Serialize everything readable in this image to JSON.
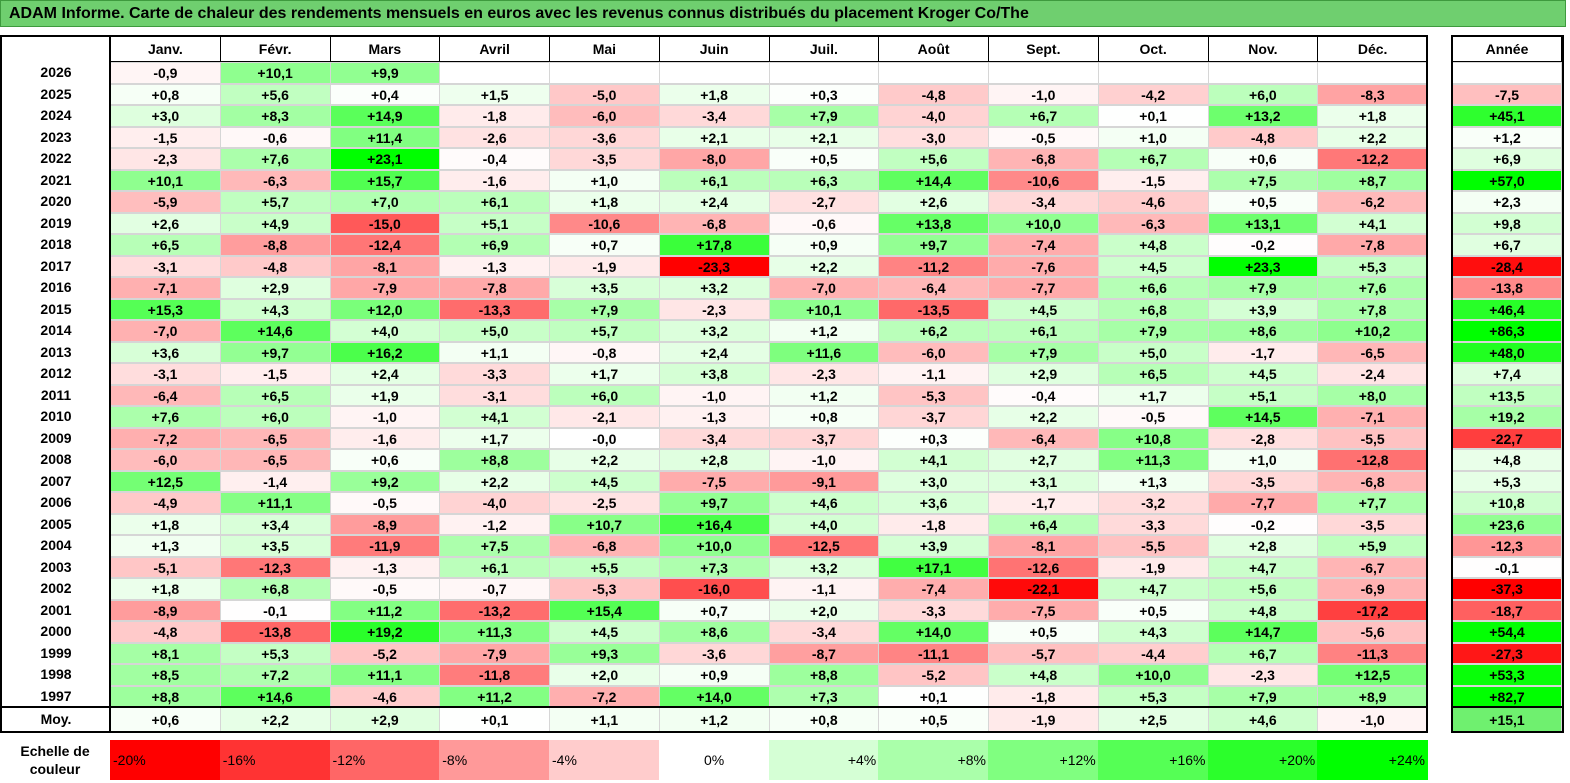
{
  "title": "ADAM Informe. Carte de chaleur des rendements mensuels en euros avec les revenus connus distribués du placement Kroger Co/The",
  "months": [
    "Janv.",
    "Févr.",
    "Mars",
    "Avril",
    "Mai",
    "Juin",
    "Juil.",
    "Août",
    "Sept.",
    "Oct.",
    "Nov.",
    "Déc."
  ],
  "year_header": "Année",
  "avg_label": "Moy.",
  "scale_label": "Echelle de couleur",
  "colors": {
    "neg_max": "#ff0000",
    "zero": "#ffffff",
    "pos_max": "#00ff00"
  },
  "chart_data": {
    "type": "heatmap",
    "title": "ADAM Informe. Carte de chaleur des rendements mensuels en euros avec les revenus connus distribués du placement Kroger Co/The",
    "rows": [
      {
        "year": "2026",
        "values": [
          "-0,9",
          "+10,1",
          "+9,9",
          "",
          "",
          "",
          "",
          "",
          "",
          "",
          "",
          ""
        ],
        "annual": ""
      },
      {
        "year": "2025",
        "values": [
          "+0,8",
          "+5,6",
          "+0,4",
          "+1,5",
          "-5,0",
          "+1,8",
          "+0,3",
          "-4,8",
          "-1,0",
          "-4,2",
          "+6,0",
          "-8,3"
        ],
        "annual": "-7,5"
      },
      {
        "year": "2024",
        "values": [
          "+3,0",
          "+8,3",
          "+14,9",
          "-1,8",
          "-6,0",
          "-3,4",
          "+7,9",
          "-4,0",
          "+6,7",
          "+0,1",
          "+13,2",
          "+1,8"
        ],
        "annual": "+45,1"
      },
      {
        "year": "2023",
        "values": [
          "-1,5",
          "-0,6",
          "+11,4",
          "-2,6",
          "-3,6",
          "+2,1",
          "+2,1",
          "-3,0",
          "-0,5",
          "+1,0",
          "-4,8",
          "+2,2"
        ],
        "annual": "+1,2"
      },
      {
        "year": "2022",
        "values": [
          "-2,3",
          "+7,6",
          "+23,1",
          "-0,4",
          "-3,5",
          "-8,0",
          "+0,5",
          "+5,6",
          "-6,8",
          "+6,7",
          "+0,6",
          "-12,2"
        ],
        "annual": "+6,9"
      },
      {
        "year": "2021",
        "values": [
          "+10,1",
          "-6,3",
          "+15,7",
          "-1,6",
          "+1,0",
          "+6,1",
          "+6,3",
          "+14,4",
          "-10,6",
          "-1,5",
          "+7,5",
          "+8,7"
        ],
        "annual": "+57,0"
      },
      {
        "year": "2020",
        "values": [
          "-5,9",
          "+5,7",
          "+7,0",
          "+6,1",
          "+1,8",
          "+2,4",
          "-2,7",
          "+2,6",
          "-3,4",
          "-4,6",
          "+0,5",
          "-6,2"
        ],
        "annual": "+2,3"
      },
      {
        "year": "2019",
        "values": [
          "+2,6",
          "+4,9",
          "-15,0",
          "+5,1",
          "-10,6",
          "-6,8",
          "-0,6",
          "+13,8",
          "+10,0",
          "-6,3",
          "+13,1",
          "+4,1"
        ],
        "annual": "+9,8"
      },
      {
        "year": "2018",
        "values": [
          "+6,5",
          "-8,8",
          "-12,4",
          "+6,9",
          "+0,7",
          "+17,8",
          "+0,9",
          "+9,7",
          "-7,4",
          "+4,8",
          "-0,2",
          "-7,8"
        ],
        "annual": "+6,7"
      },
      {
        "year": "2017",
        "values": [
          "-3,1",
          "-4,8",
          "-8,1",
          "-1,3",
          "-1,9",
          "-23,3",
          "+2,2",
          "-11,2",
          "-7,6",
          "+4,5",
          "+23,3",
          "+5,3"
        ],
        "annual": "-28,4"
      },
      {
        "year": "2016",
        "values": [
          "-7,1",
          "+2,9",
          "-7,9",
          "-7,8",
          "+3,5",
          "+3,2",
          "-7,0",
          "-6,4",
          "-7,7",
          "+6,6",
          "+7,9",
          "+7,6"
        ],
        "annual": "-13,8"
      },
      {
        "year": "2015",
        "values": [
          "+15,3",
          "+4,3",
          "+12,0",
          "-13,3",
          "+7,9",
          "-2,3",
          "+10,1",
          "-13,5",
          "+4,5",
          "+6,8",
          "+3,9",
          "+7,8"
        ],
        "annual": "+46,4"
      },
      {
        "year": "2014",
        "values": [
          "-7,0",
          "+14,6",
          "+4,0",
          "+5,0",
          "+5,7",
          "+3,2",
          "+1,2",
          "+6,2",
          "+6,1",
          "+7,9",
          "+8,6",
          "+10,2"
        ],
        "annual": "+86,3"
      },
      {
        "year": "2013",
        "values": [
          "+3,6",
          "+9,7",
          "+16,2",
          "+1,1",
          "-0,8",
          "+2,4",
          "+11,6",
          "-6,0",
          "+7,9",
          "+5,0",
          "-1,7",
          "-6,5"
        ],
        "annual": "+48,0"
      },
      {
        "year": "2012",
        "values": [
          "-3,1",
          "-1,5",
          "+2,4",
          "-3,3",
          "+1,7",
          "+3,8",
          "-2,3",
          "-1,1",
          "+2,9",
          "+6,5",
          "+4,5",
          "-2,4"
        ],
        "annual": "+7,4"
      },
      {
        "year": "2011",
        "values": [
          "-6,4",
          "+6,5",
          "+1,9",
          "-3,1",
          "+6,0",
          "-1,0",
          "+1,2",
          "-5,3",
          "-0,4",
          "+1,7",
          "+5,1",
          "+8,0"
        ],
        "annual": "+13,5"
      },
      {
        "year": "2010",
        "values": [
          "+7,6",
          "+6,0",
          "-1,0",
          "+4,1",
          "-2,1",
          "-1,3",
          "+0,8",
          "-3,7",
          "+2,2",
          "-0,5",
          "+14,5",
          "-7,1"
        ],
        "annual": "+19,2"
      },
      {
        "year": "2009",
        "values": [
          "-7,2",
          "-6,5",
          "-1,6",
          "+1,7",
          "-0,0",
          "-3,4",
          "-3,7",
          "+0,3",
          "-6,4",
          "+10,8",
          "-2,8",
          "-5,5"
        ],
        "annual": "-22,7"
      },
      {
        "year": "2008",
        "values": [
          "-6,0",
          "-6,5",
          "+0,6",
          "+8,8",
          "+2,2",
          "+2,8",
          "-1,0",
          "+4,1",
          "+2,7",
          "+11,3",
          "+1,0",
          "-12,8"
        ],
        "annual": "+4,8"
      },
      {
        "year": "2007",
        "values": [
          "+12,5",
          "-1,4",
          "+9,2",
          "+2,2",
          "+4,5",
          "-7,5",
          "-9,1",
          "+3,0",
          "+3,1",
          "+1,3",
          "-3,5",
          "-6,8"
        ],
        "annual": "+5,3"
      },
      {
        "year": "2006",
        "values": [
          "-4,9",
          "+11,1",
          "-0,5",
          "-4,0",
          "-2,5",
          "+9,7",
          "+4,6",
          "+3,6",
          "-1,7",
          "-3,2",
          "-7,7",
          "+7,7"
        ],
        "annual": "+10,8"
      },
      {
        "year": "2005",
        "values": [
          "+1,8",
          "+3,4",
          "-8,9",
          "-1,2",
          "+10,7",
          "+16,4",
          "+4,0",
          "-1,8",
          "+6,4",
          "-3,3",
          "-0,2",
          "-3,5"
        ],
        "annual": "+23,6"
      },
      {
        "year": "2004",
        "values": [
          "+1,3",
          "+3,5",
          "-11,9",
          "+7,5",
          "-6,8",
          "+10,0",
          "-12,5",
          "+3,9",
          "-8,1",
          "-5,5",
          "+2,8",
          "+5,9"
        ],
        "annual": "-12,3"
      },
      {
        "year": "2003",
        "values": [
          "-5,1",
          "-12,3",
          "-1,3",
          "+6,1",
          "+5,5",
          "+7,3",
          "+3,2",
          "+17,1",
          "-12,6",
          "-1,9",
          "+4,7",
          "-6,7"
        ],
        "annual": "-0,1"
      },
      {
        "year": "2002",
        "values": [
          "+1,8",
          "+6,8",
          "-0,5",
          "-0,7",
          "-5,3",
          "-16,0",
          "-1,1",
          "-7,4",
          "-22,1",
          "+4,7",
          "+5,6",
          "-6,9"
        ],
        "annual": "-37,3"
      },
      {
        "year": "2001",
        "values": [
          "-8,9",
          "-0,1",
          "+11,2",
          "-13,2",
          "+15,4",
          "+0,7",
          "+2,0",
          "-3,3",
          "-7,5",
          "+0,5",
          "+4,8",
          "-17,2"
        ],
        "annual": "-18,7"
      },
      {
        "year": "2000",
        "values": [
          "-4,8",
          "-13,8",
          "+19,2",
          "+11,3",
          "+4,5",
          "+8,6",
          "-3,4",
          "+14,0",
          "+0,5",
          "+4,3",
          "+14,7",
          "-5,6"
        ],
        "annual": "+54,4"
      },
      {
        "year": "1999",
        "values": [
          "+8,1",
          "+5,3",
          "-5,2",
          "-7,9",
          "+9,3",
          "-3,6",
          "-8,7",
          "-11,1",
          "-5,7",
          "-4,4",
          "+6,7",
          "-11,3"
        ],
        "annual": "-27,3"
      },
      {
        "year": "1998",
        "values": [
          "+8,5",
          "+7,2",
          "+11,1",
          "-11,8",
          "+2,0",
          "+0,9",
          "+8,8",
          "-5,2",
          "+4,8",
          "+10,0",
          "-2,3",
          "+12,5"
        ],
        "annual": "+53,3"
      },
      {
        "year": "1997",
        "values": [
          "+8,8",
          "+14,6",
          "-4,6",
          "+11,2",
          "-7,2",
          "+14,0",
          "+7,3",
          "+0,1",
          "-1,8",
          "+5,3",
          "+7,9",
          "+8,9"
        ],
        "annual": "+82,7"
      }
    ],
    "average": {
      "values": [
        "+0,6",
        "+2,2",
        "+2,9",
        "+0,1",
        "+1,1",
        "+1,2",
        "+0,8",
        "+0,5",
        "-1,9",
        "+2,5",
        "+4,6",
        "-1,0"
      ],
      "annual": "+15,1"
    },
    "scale": [
      {
        "label": "-20%",
        "value": -20
      },
      {
        "label": "-16%",
        "value": -16
      },
      {
        "label": "-12%",
        "value": -12
      },
      {
        "label": "-8%",
        "value": -8
      },
      {
        "label": "-4%",
        "value": -4
      },
      {
        "label": "0%",
        "value": 0
      },
      {
        "label": "+4%",
        "value": 4
      },
      {
        "label": "+8%",
        "value": 8
      },
      {
        "label": "+12%",
        "value": 12
      },
      {
        "label": "+16%",
        "value": 16
      },
      {
        "label": "+20%",
        "value": 20
      },
      {
        "label": "+24%",
        "value": 24
      }
    ]
  }
}
